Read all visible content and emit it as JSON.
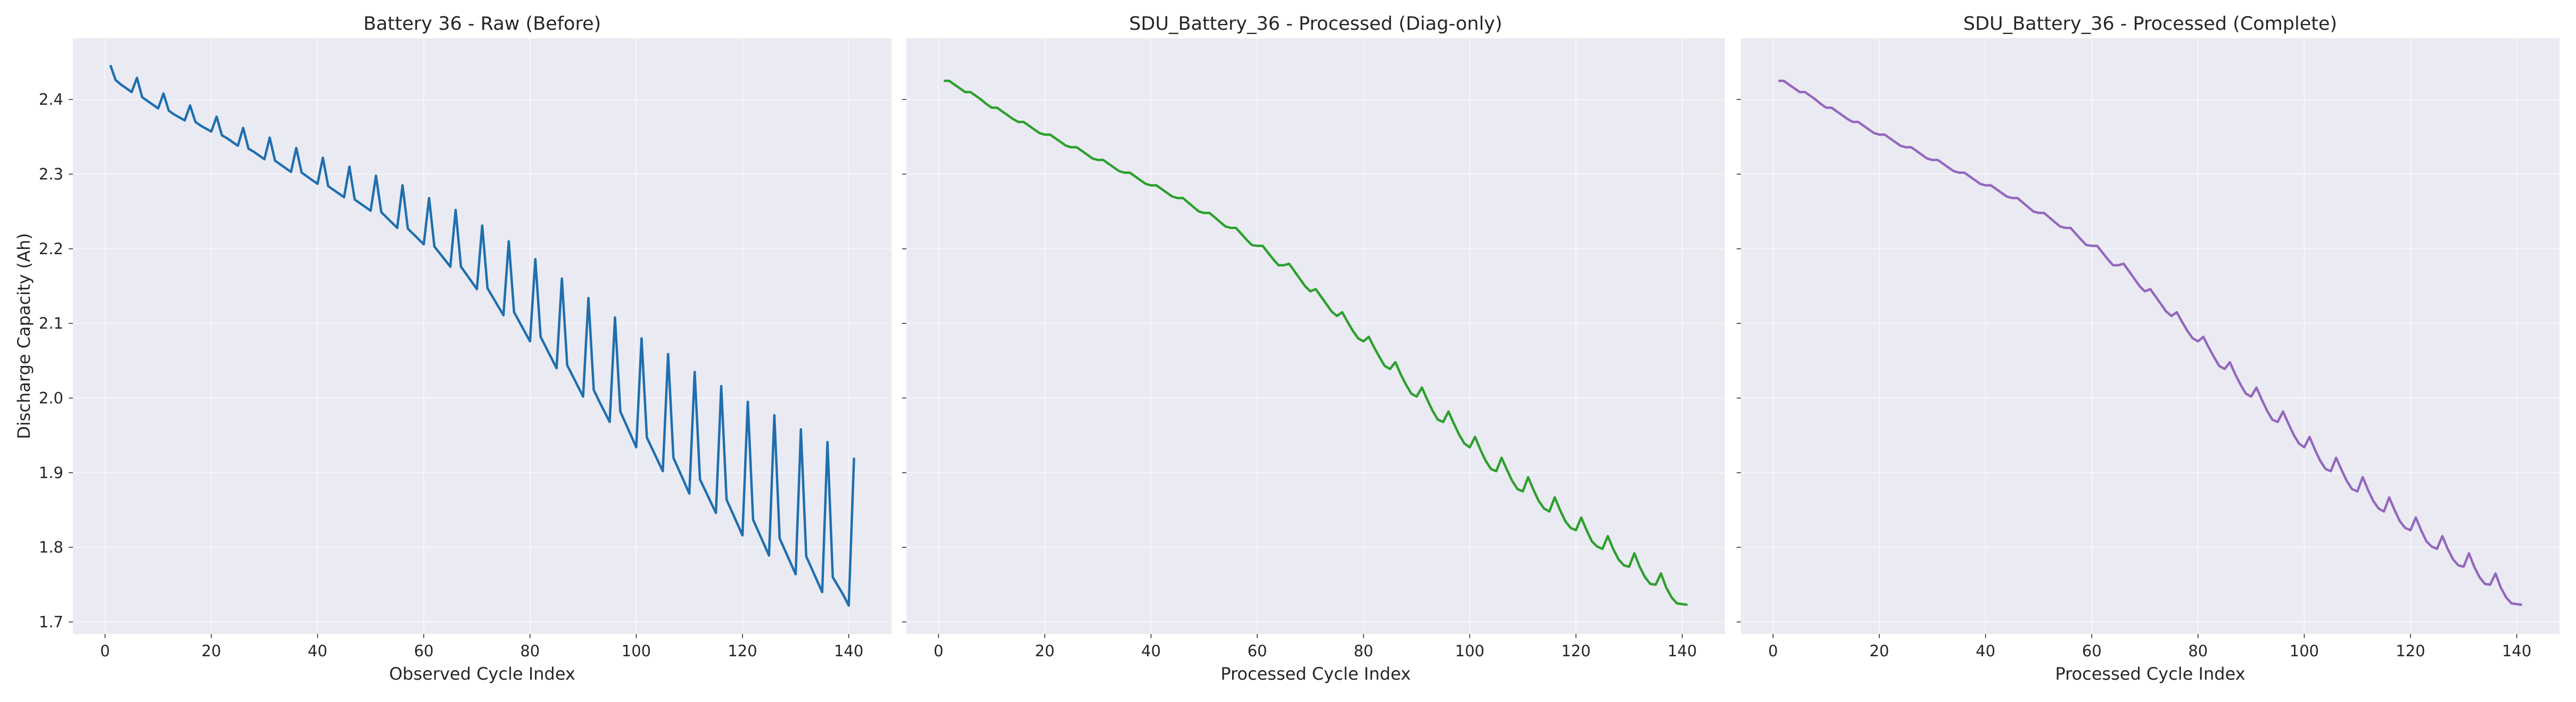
{
  "chart_data": [
    {
      "type": "line",
      "title": "Battery 36 - Raw (Before)",
      "xlabel": "Observed Cycle Index",
      "ylabel": "Discharge Capacity (Ah)",
      "xlim": [
        -6.05,
        148.05
      ],
      "ylim": [
        1.684,
        2.482
      ],
      "xticks": [
        0,
        20,
        40,
        60,
        80,
        100,
        120,
        140
      ],
      "yticks": [
        1.7,
        1.8,
        1.9,
        2.0,
        2.1,
        2.2,
        2.3,
        2.4
      ],
      "grid": true,
      "color": "#1f6fae",
      "series": [
        {
          "x": [
            1,
            2,
            3,
            4,
            5,
            6,
            7,
            8,
            9,
            10,
            11,
            12,
            13,
            14,
            15,
            16,
            17,
            18,
            19,
            20,
            21,
            22,
            23,
            24,
            25,
            26,
            27,
            28,
            29,
            30,
            31,
            32,
            33,
            34,
            35,
            36,
            37,
            38,
            39,
            40,
            41,
            42,
            43,
            44,
            45,
            46,
            47,
            48,
            49,
            50,
            51,
            52,
            53,
            54,
            55,
            56,
            57,
            58,
            59,
            60,
            61,
            62,
            63,
            64,
            65,
            66,
            67,
            68,
            69,
            70,
            71,
            72,
            73,
            74,
            75,
            76,
            77,
            78,
            79,
            80,
            81,
            82,
            83,
            84,
            85,
            86,
            87,
            88,
            89,
            90,
            91,
            92,
            93,
            94,
            95,
            96,
            97,
            98,
            99,
            100,
            101,
            102,
            103,
            104,
            105,
            106,
            107,
            108,
            109,
            110,
            111,
            112,
            113,
            114,
            115,
            116,
            117,
            118,
            119,
            120,
            121,
            122,
            123,
            124,
            125,
            126,
            127,
            128,
            129,
            130,
            131,
            132,
            133,
            134,
            135,
            136,
            137,
            138,
            139,
            140,
            141
          ],
          "y": [
            2.446,
            2.426,
            2.42,
            2.415,
            2.41,
            2.429,
            2.403,
            2.398,
            2.393,
            2.388,
            2.408,
            2.385,
            2.38,
            2.376,
            2.372,
            2.392,
            2.37,
            2.365,
            2.361,
            2.357,
            2.377,
            2.352,
            2.348,
            2.343,
            2.338,
            2.362,
            2.334,
            2.33,
            2.325,
            2.32,
            2.349,
            2.318,
            2.313,
            2.308,
            2.303,
            2.335,
            2.302,
            2.297,
            2.292,
            2.287,
            2.322,
            2.284,
            2.279,
            2.274,
            2.269,
            2.31,
            2.266,
            2.261,
            2.256,
            2.251,
            2.298,
            2.249,
            2.242,
            2.235,
            2.228,
            2.285,
            2.227,
            2.22,
            2.213,
            2.206,
            2.268,
            2.203,
            2.194,
            2.185,
            2.176,
            2.252,
            2.176,
            2.166,
            2.156,
            2.146,
            2.231,
            2.147,
            2.135,
            2.123,
            2.111,
            2.21,
            2.115,
            2.102,
            2.089,
            2.076,
            2.186,
            2.082,
            2.068,
            2.054,
            2.04,
            2.16,
            2.044,
            2.03,
            2.016,
            2.002,
            2.134,
            2.011,
            1.996,
            1.982,
            1.968,
            2.108,
            1.982,
            1.966,
            1.95,
            1.934,
            2.08,
            1.947,
            1.932,
            1.917,
            1.902,
            2.059,
            1.92,
            1.904,
            1.888,
            1.872,
            2.035,
            1.891,
            1.876,
            1.861,
            1.846,
            2.016,
            1.864,
            1.848,
            1.832,
            1.816,
            1.995,
            1.837,
            1.821,
            1.805,
            1.789,
            1.977,
            1.812,
            1.796,
            1.78,
            1.764,
            1.958,
            1.788,
            1.772,
            1.756,
            1.74,
            1.941,
            1.76,
            1.748,
            1.736,
            1.722,
            1.92
          ]
        }
      ]
    },
    {
      "type": "line",
      "title": "SDU_Battery_36 - Processed (Diag-only)",
      "xlabel": "Processed Cycle Index",
      "ylabel": "",
      "xlim": [
        -6.05,
        148.05
      ],
      "ylim": [
        1.684,
        2.482
      ],
      "xticks": [
        0,
        20,
        40,
        60,
        80,
        100,
        120,
        140
      ],
      "yticks": [
        1.7,
        1.8,
        1.9,
        2.0,
        2.1,
        2.2,
        2.3,
        2.4
      ],
      "grid": true,
      "color": "#2ca02c",
      "series": [
        {
          "x": [
            1,
            2,
            3,
            4,
            5,
            6,
            7,
            8,
            9,
            10,
            11,
            12,
            13,
            14,
            15,
            16,
            17,
            18,
            19,
            20,
            21,
            22,
            23,
            24,
            25,
            26,
            27,
            28,
            29,
            30,
            31,
            32,
            33,
            34,
            35,
            36,
            37,
            38,
            39,
            40,
            41,
            42,
            43,
            44,
            45,
            46,
            47,
            48,
            49,
            50,
            51,
            52,
            53,
            54,
            55,
            56,
            57,
            58,
            59,
            60,
            61,
            62,
            63,
            64,
            65,
            66,
            67,
            68,
            69,
            70,
            71,
            72,
            73,
            74,
            75,
            76,
            77,
            78,
            79,
            80,
            81,
            82,
            83,
            84,
            85,
            86,
            87,
            88,
            89,
            90,
            91,
            92,
            93,
            94,
            95,
            96,
            97,
            98,
            99,
            100,
            101,
            102,
            103,
            104,
            105,
            106,
            107,
            108,
            109,
            110,
            111,
            112,
            113,
            114,
            115,
            116,
            117,
            118,
            119,
            120,
            121,
            122,
            123,
            124,
            125,
            126,
            127,
            128,
            129,
            130,
            131,
            132,
            133,
            134,
            135,
            136,
            137,
            138,
            139,
            140,
            141
          ],
          "y": [
            2.425,
            2.425,
            2.42,
            2.415,
            2.41,
            2.41,
            2.405,
            2.4,
            2.394,
            2.389,
            2.389,
            2.384,
            2.379,
            2.374,
            2.37,
            2.37,
            2.365,
            2.36,
            2.355,
            2.353,
            2.353,
            2.348,
            2.343,
            2.338,
            2.336,
            2.336,
            2.331,
            2.326,
            2.321,
            2.319,
            2.319,
            2.314,
            2.309,
            2.304,
            2.302,
            2.302,
            2.297,
            2.292,
            2.287,
            2.285,
            2.285,
            2.28,
            2.275,
            2.27,
            2.268,
            2.268,
            2.262,
            2.256,
            2.25,
            2.248,
            2.248,
            2.242,
            2.236,
            2.23,
            2.228,
            2.228,
            2.22,
            2.212,
            2.205,
            2.204,
            2.204,
            2.195,
            2.186,
            2.178,
            2.178,
            2.18,
            2.17,
            2.16,
            2.15,
            2.143,
            2.146,
            2.136,
            2.126,
            2.116,
            2.11,
            2.115,
            2.102,
            2.09,
            2.08,
            2.076,
            2.082,
            2.068,
            2.055,
            2.043,
            2.039,
            2.048,
            2.032,
            2.018,
            2.006,
            2.002,
            2.014,
            1.998,
            1.983,
            1.971,
            1.968,
            1.982,
            1.966,
            1.951,
            1.939,
            1.934,
            1.948,
            1.931,
            1.916,
            1.905,
            1.902,
            1.92,
            1.904,
            1.889,
            1.878,
            1.875,
            1.894,
            1.877,
            1.862,
            1.852,
            1.848,
            1.867,
            1.85,
            1.835,
            1.826,
            1.823,
            1.84,
            1.823,
            1.808,
            1.801,
            1.798,
            1.815,
            1.798,
            1.784,
            1.776,
            1.774,
            1.792,
            1.774,
            1.76,
            1.751,
            1.75,
            1.765,
            1.746,
            1.733,
            1.725,
            1.724,
            1.723
          ]
        }
      ]
    },
    {
      "type": "line",
      "title": "SDU_Battery_36 - Processed (Complete)",
      "xlabel": "Processed Cycle Index",
      "ylabel": "",
      "xlim": [
        -6.05,
        148.05
      ],
      "ylim": [
        1.684,
        2.482
      ],
      "xticks": [
        0,
        20,
        40,
        60,
        80,
        100,
        120,
        140
      ],
      "yticks": [
        1.7,
        1.8,
        1.9,
        2.0,
        2.1,
        2.2,
        2.3,
        2.4
      ],
      "grid": true,
      "color": "#9467bd",
      "series": [
        {
          "x": [
            1,
            2,
            3,
            4,
            5,
            6,
            7,
            8,
            9,
            10,
            11,
            12,
            13,
            14,
            15,
            16,
            17,
            18,
            19,
            20,
            21,
            22,
            23,
            24,
            25,
            26,
            27,
            28,
            29,
            30,
            31,
            32,
            33,
            34,
            35,
            36,
            37,
            38,
            39,
            40,
            41,
            42,
            43,
            44,
            45,
            46,
            47,
            48,
            49,
            50,
            51,
            52,
            53,
            54,
            55,
            56,
            57,
            58,
            59,
            60,
            61,
            62,
            63,
            64,
            65,
            66,
            67,
            68,
            69,
            70,
            71,
            72,
            73,
            74,
            75,
            76,
            77,
            78,
            79,
            80,
            81,
            82,
            83,
            84,
            85,
            86,
            87,
            88,
            89,
            90,
            91,
            92,
            93,
            94,
            95,
            96,
            97,
            98,
            99,
            100,
            101,
            102,
            103,
            104,
            105,
            106,
            107,
            108,
            109,
            110,
            111,
            112,
            113,
            114,
            115,
            116,
            117,
            118,
            119,
            120,
            121,
            122,
            123,
            124,
            125,
            126,
            127,
            128,
            129,
            130,
            131,
            132,
            133,
            134,
            135,
            136,
            137,
            138,
            139,
            140,
            141
          ],
          "y": [
            2.425,
            2.425,
            2.42,
            2.415,
            2.41,
            2.41,
            2.405,
            2.4,
            2.394,
            2.389,
            2.389,
            2.384,
            2.379,
            2.374,
            2.37,
            2.37,
            2.365,
            2.36,
            2.355,
            2.353,
            2.353,
            2.348,
            2.343,
            2.338,
            2.336,
            2.336,
            2.331,
            2.326,
            2.321,
            2.319,
            2.319,
            2.314,
            2.309,
            2.304,
            2.302,
            2.302,
            2.297,
            2.292,
            2.287,
            2.285,
            2.285,
            2.28,
            2.275,
            2.27,
            2.268,
            2.268,
            2.262,
            2.256,
            2.25,
            2.248,
            2.248,
            2.242,
            2.236,
            2.23,
            2.228,
            2.228,
            2.22,
            2.212,
            2.205,
            2.204,
            2.204,
            2.195,
            2.186,
            2.178,
            2.178,
            2.18,
            2.17,
            2.16,
            2.15,
            2.143,
            2.146,
            2.136,
            2.126,
            2.116,
            2.11,
            2.115,
            2.102,
            2.09,
            2.08,
            2.076,
            2.082,
            2.068,
            2.055,
            2.043,
            2.039,
            2.048,
            2.032,
            2.018,
            2.006,
            2.002,
            2.014,
            1.998,
            1.983,
            1.971,
            1.968,
            1.982,
            1.966,
            1.951,
            1.939,
            1.934,
            1.948,
            1.931,
            1.916,
            1.905,
            1.902,
            1.92,
            1.904,
            1.889,
            1.878,
            1.875,
            1.894,
            1.877,
            1.862,
            1.852,
            1.848,
            1.867,
            1.85,
            1.835,
            1.826,
            1.823,
            1.84,
            1.823,
            1.808,
            1.801,
            1.798,
            1.815,
            1.798,
            1.784,
            1.776,
            1.774,
            1.792,
            1.774,
            1.76,
            1.751,
            1.75,
            1.765,
            1.746,
            1.733,
            1.725,
            1.724,
            1.723
          ]
        }
      ]
    }
  ]
}
